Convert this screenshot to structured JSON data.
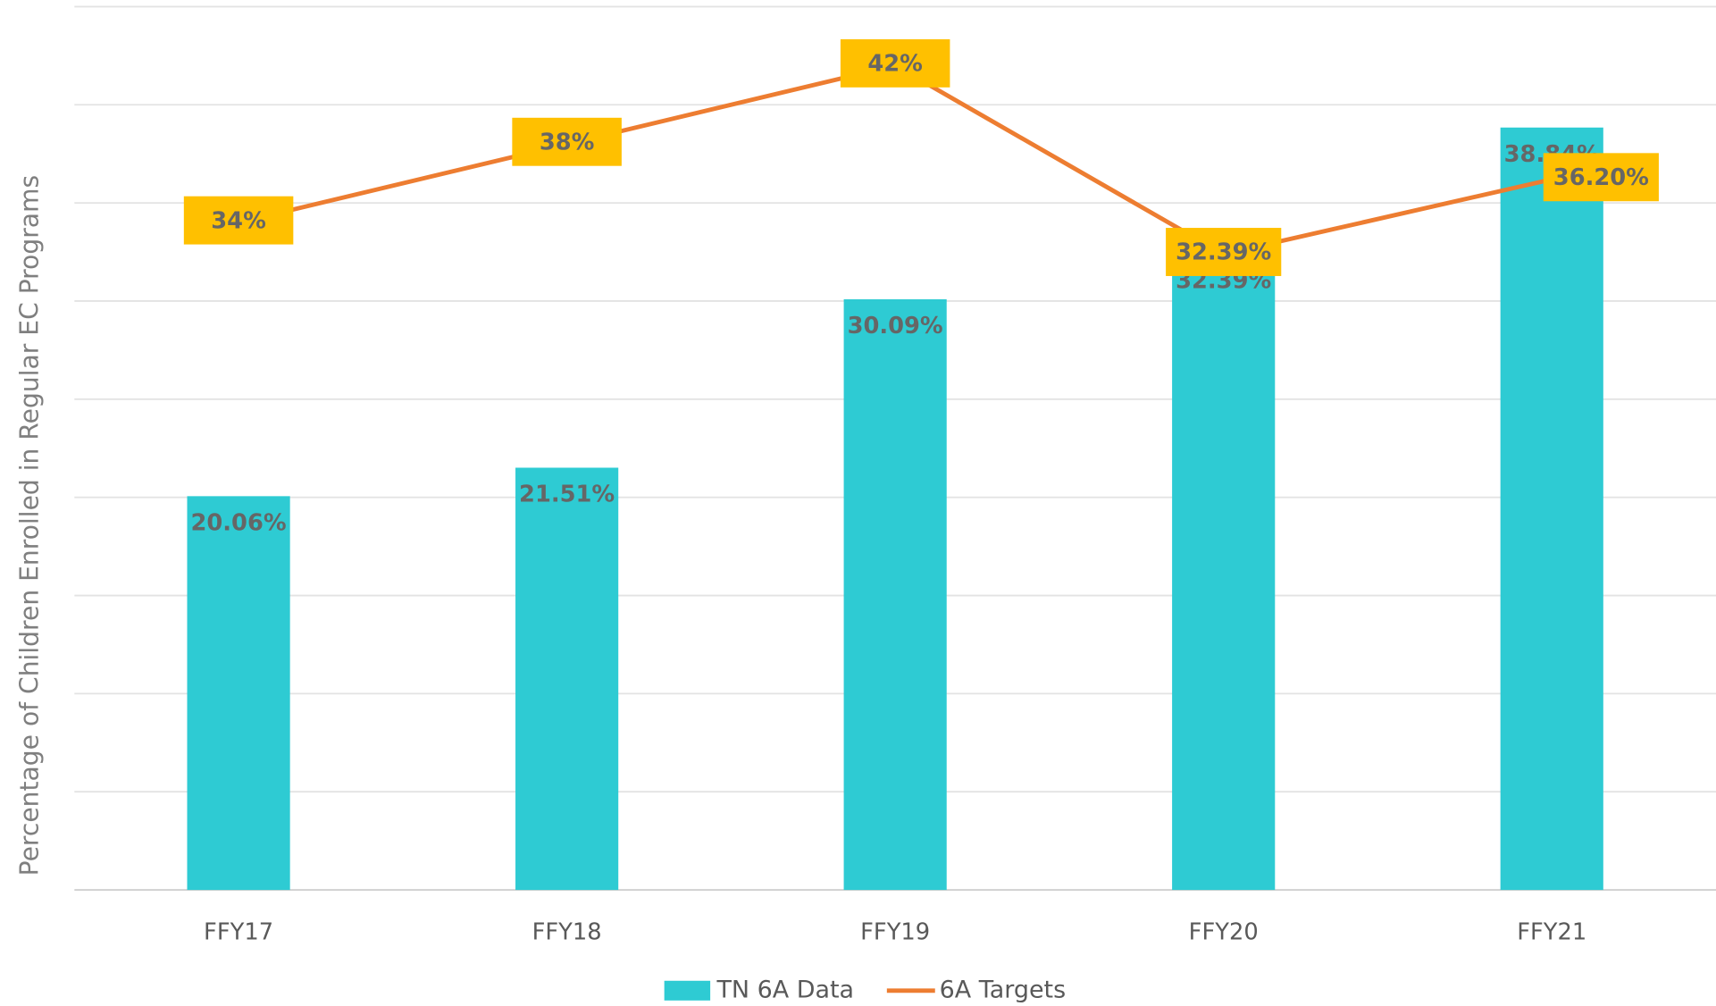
{
  "chart_data": {
    "type": "combo",
    "y_label": "Percentage of Children Enrolled in Regular EC Programs",
    "categories": [
      "FFY17",
      "FFY18",
      "FFY19",
      "FFY20",
      "FFY21"
    ],
    "series": [
      {
        "name": "TN 6A Data",
        "type": "bar",
        "color": "#2ecbd3",
        "values": [
          20.06,
          21.51,
          30.09,
          32.39,
          38.84
        ],
        "value_labels": [
          "20.06%",
          "21.51%",
          "30.09%",
          "32.39%",
          "38.84%"
        ]
      },
      {
        "name": "6A Targets",
        "type": "line",
        "color": "#ed7d31",
        "label_box_color": "#ffc000",
        "values": [
          34,
          38,
          42,
          32.39,
          36.2
        ],
        "value_labels": [
          "34%",
          "38%",
          "42%",
          "32.39%",
          "36.20%"
        ]
      }
    ],
    "ylim": [
      0,
      45
    ],
    "yticks": [
      0,
      5,
      10,
      15,
      20,
      25,
      30,
      35,
      40,
      45
    ],
    "grid": true,
    "legend": "bottom"
  }
}
